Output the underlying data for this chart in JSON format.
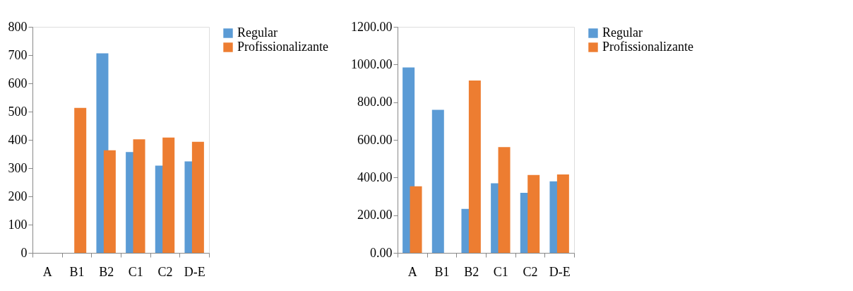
{
  "chart_data": [
    {
      "type": "bar",
      "categories": [
        "A",
        "B1",
        "B2",
        "C1",
        "C2",
        "D-E"
      ],
      "ylim": [
        0,
        800
      ],
      "yticks": [
        0,
        100,
        200,
        300,
        400,
        500,
        600,
        700,
        800
      ],
      "grid": false,
      "legend": "right",
      "series": [
        {
          "name": "Regular",
          "color": "#5b9bd5",
          "values": [
            null,
            null,
            706,
            357,
            309,
            324
          ]
        },
        {
          "name": "Profissionalizante",
          "color": "#ed7d31",
          "values": [
            null,
            513,
            363,
            402,
            408,
            393
          ]
        }
      ]
    },
    {
      "type": "bar",
      "categories": [
        "A",
        "B1",
        "B2",
        "C1",
        "C2",
        "D-E"
      ],
      "ylim": [
        0,
        1200
      ],
      "yticks": [
        {
          "value": 0,
          "label": "0.00"
        },
        {
          "value": 200,
          "label": "200.00"
        },
        {
          "value": 400,
          "label": "400.00"
        },
        {
          "value": 600,
          "label": "600.00"
        },
        {
          "value": 800,
          "label": "800.00"
        },
        {
          "value": 1000,
          "label": "1000.00"
        },
        {
          "value": 1200,
          "label": "1200.00"
        }
      ],
      "grid": false,
      "legend": "right",
      "series": [
        {
          "name": "Regular",
          "color": "#5b9bd5",
          "values": [
            984,
            759,
            233,
            369,
            319,
            380
          ]
        },
        {
          "name": "Profissionalizante",
          "color": "#ed7d31",
          "values": [
            353,
            null,
            915,
            562,
            413,
            416
          ]
        }
      ]
    }
  ]
}
